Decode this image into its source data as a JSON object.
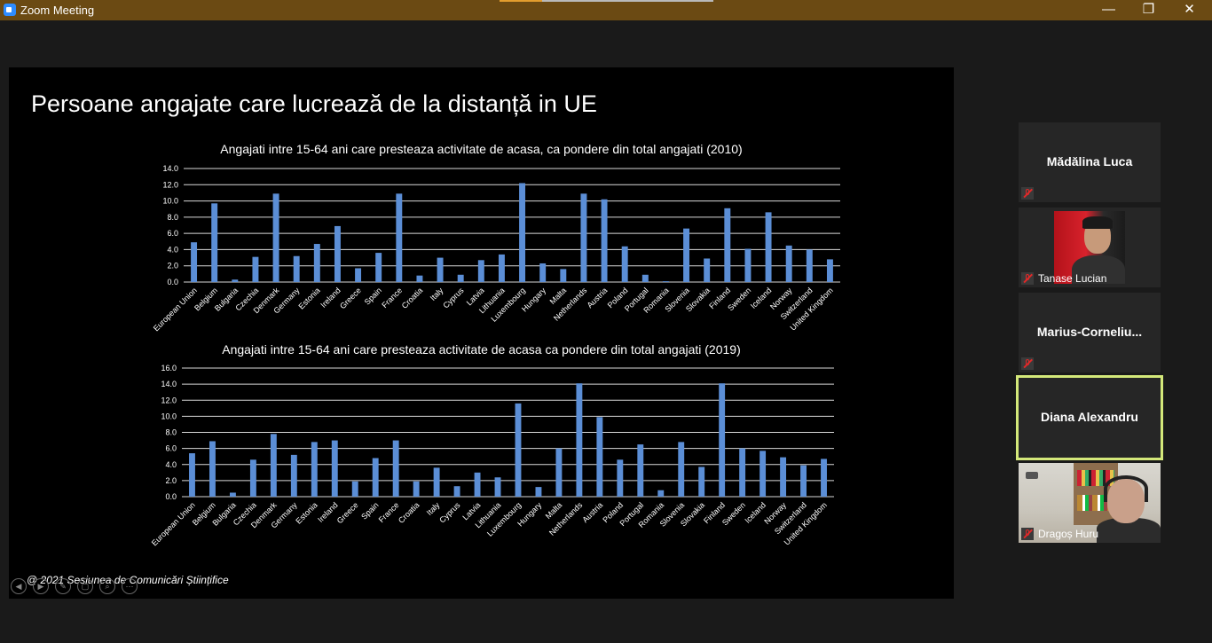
{
  "window": {
    "title": "Zoom Meeting",
    "minimize_glyph": "—",
    "restore_glyph": "❐",
    "close_glyph": "✕",
    "share_progress": 0.2
  },
  "slide": {
    "title": "Persoane angajate care lucrează de la distanță in UE",
    "footer": "@ 2021 Sesiunea de Comunicări Științifice",
    "controls": [
      "◀",
      "▶",
      "✎",
      "▢",
      "⌕",
      "⋯"
    ]
  },
  "chart_data": [
    {
      "type": "bar",
      "title": "Angajati intre 15-64 ani care presteaza activitate de acasa, ca pondere din total angajati (2010)",
      "categories": [
        "European Union",
        "Belgium",
        "Bulgaria",
        "Czechia",
        "Denmark",
        "Germany",
        "Estonia",
        "Ireland",
        "Greece",
        "Spain",
        "France",
        "Croatia",
        "Italy",
        "Cyprus",
        "Latvia",
        "Lithuania",
        "Luxembourg",
        "Hungary",
        "Malta",
        "Netherlands",
        "Austria",
        "Poland",
        "Portugal",
        "Romania",
        "Slovenia",
        "Slovakia",
        "Finland",
        "Sweden",
        "Iceland",
        "Norway",
        "Switzerland",
        "United Kingdom"
      ],
      "values": [
        4.9,
        9.7,
        0.3,
        3.1,
        10.9,
        3.2,
        4.7,
        6.9,
        1.7,
        3.6,
        10.9,
        0.8,
        3.0,
        0.9,
        2.7,
        3.4,
        12.2,
        2.3,
        1.6,
        10.9,
        10.2,
        4.4,
        0.9,
        0.1,
        6.6,
        2.9,
        9.1,
        4.1,
        8.6,
        4.5,
        4.0,
        2.8
      ],
      "ylim": [
        0,
        14
      ],
      "yticks": [
        "0.0",
        "2.0",
        "4.0",
        "6.0",
        "8.0",
        "10.0",
        "12.0",
        "14.0"
      ],
      "color": "#5b8ed6",
      "grid": true
    },
    {
      "type": "bar",
      "title": "Angajati intre 15-64 ani care presteaza activitate de acasa ca pondere din total angajati (2019)",
      "categories": [
        "European Union",
        "Belgium",
        "Bulgaria",
        "Czechia",
        "Denmark",
        "Germany",
        "Estonia",
        "Ireland",
        "Greece",
        "Spain",
        "France",
        "Croatia",
        "Italy",
        "Cyprus",
        "Latvia",
        "Lithuania",
        "Luxembourg",
        "Hungary",
        "Malta",
        "Netherlands",
        "Austria",
        "Poland",
        "Portugal",
        "Romania",
        "Slovenia",
        "Slovakia",
        "Finland",
        "Sweden",
        "Iceland",
        "Norway",
        "Switzerland",
        "United Kingdom"
      ],
      "values": [
        5.4,
        6.9,
        0.5,
        4.6,
        7.8,
        5.2,
        6.8,
        7.0,
        1.9,
        4.8,
        7.0,
        1.9,
        3.6,
        1.3,
        3.0,
        2.4,
        11.6,
        1.2,
        6.0,
        14.1,
        9.9,
        4.6,
        6.5,
        0.8,
        6.8,
        3.7,
        14.1,
        6.0,
        5.7,
        4.9,
        3.9,
        4.7
      ],
      "ylim": [
        0,
        16
      ],
      "yticks": [
        "0.0",
        "2.0",
        "4.0",
        "6.0",
        "8.0",
        "10.0",
        "12.0",
        "14.0",
        "16.0"
      ],
      "color": "#5b8ed6",
      "grid": true
    }
  ],
  "participants": [
    {
      "name": "Mădălina Luca",
      "muted": true,
      "video": false,
      "active": false
    },
    {
      "name": "Tanase Lucian",
      "muted": true,
      "video": true,
      "active": false
    },
    {
      "name": "Marius-Corneliu...",
      "muted": true,
      "video": false,
      "active": false
    },
    {
      "name": "Diana Alexandru",
      "muted": false,
      "video": false,
      "active": true
    },
    {
      "name": "Dragoș Huru",
      "muted": true,
      "video": true,
      "active": false
    }
  ]
}
